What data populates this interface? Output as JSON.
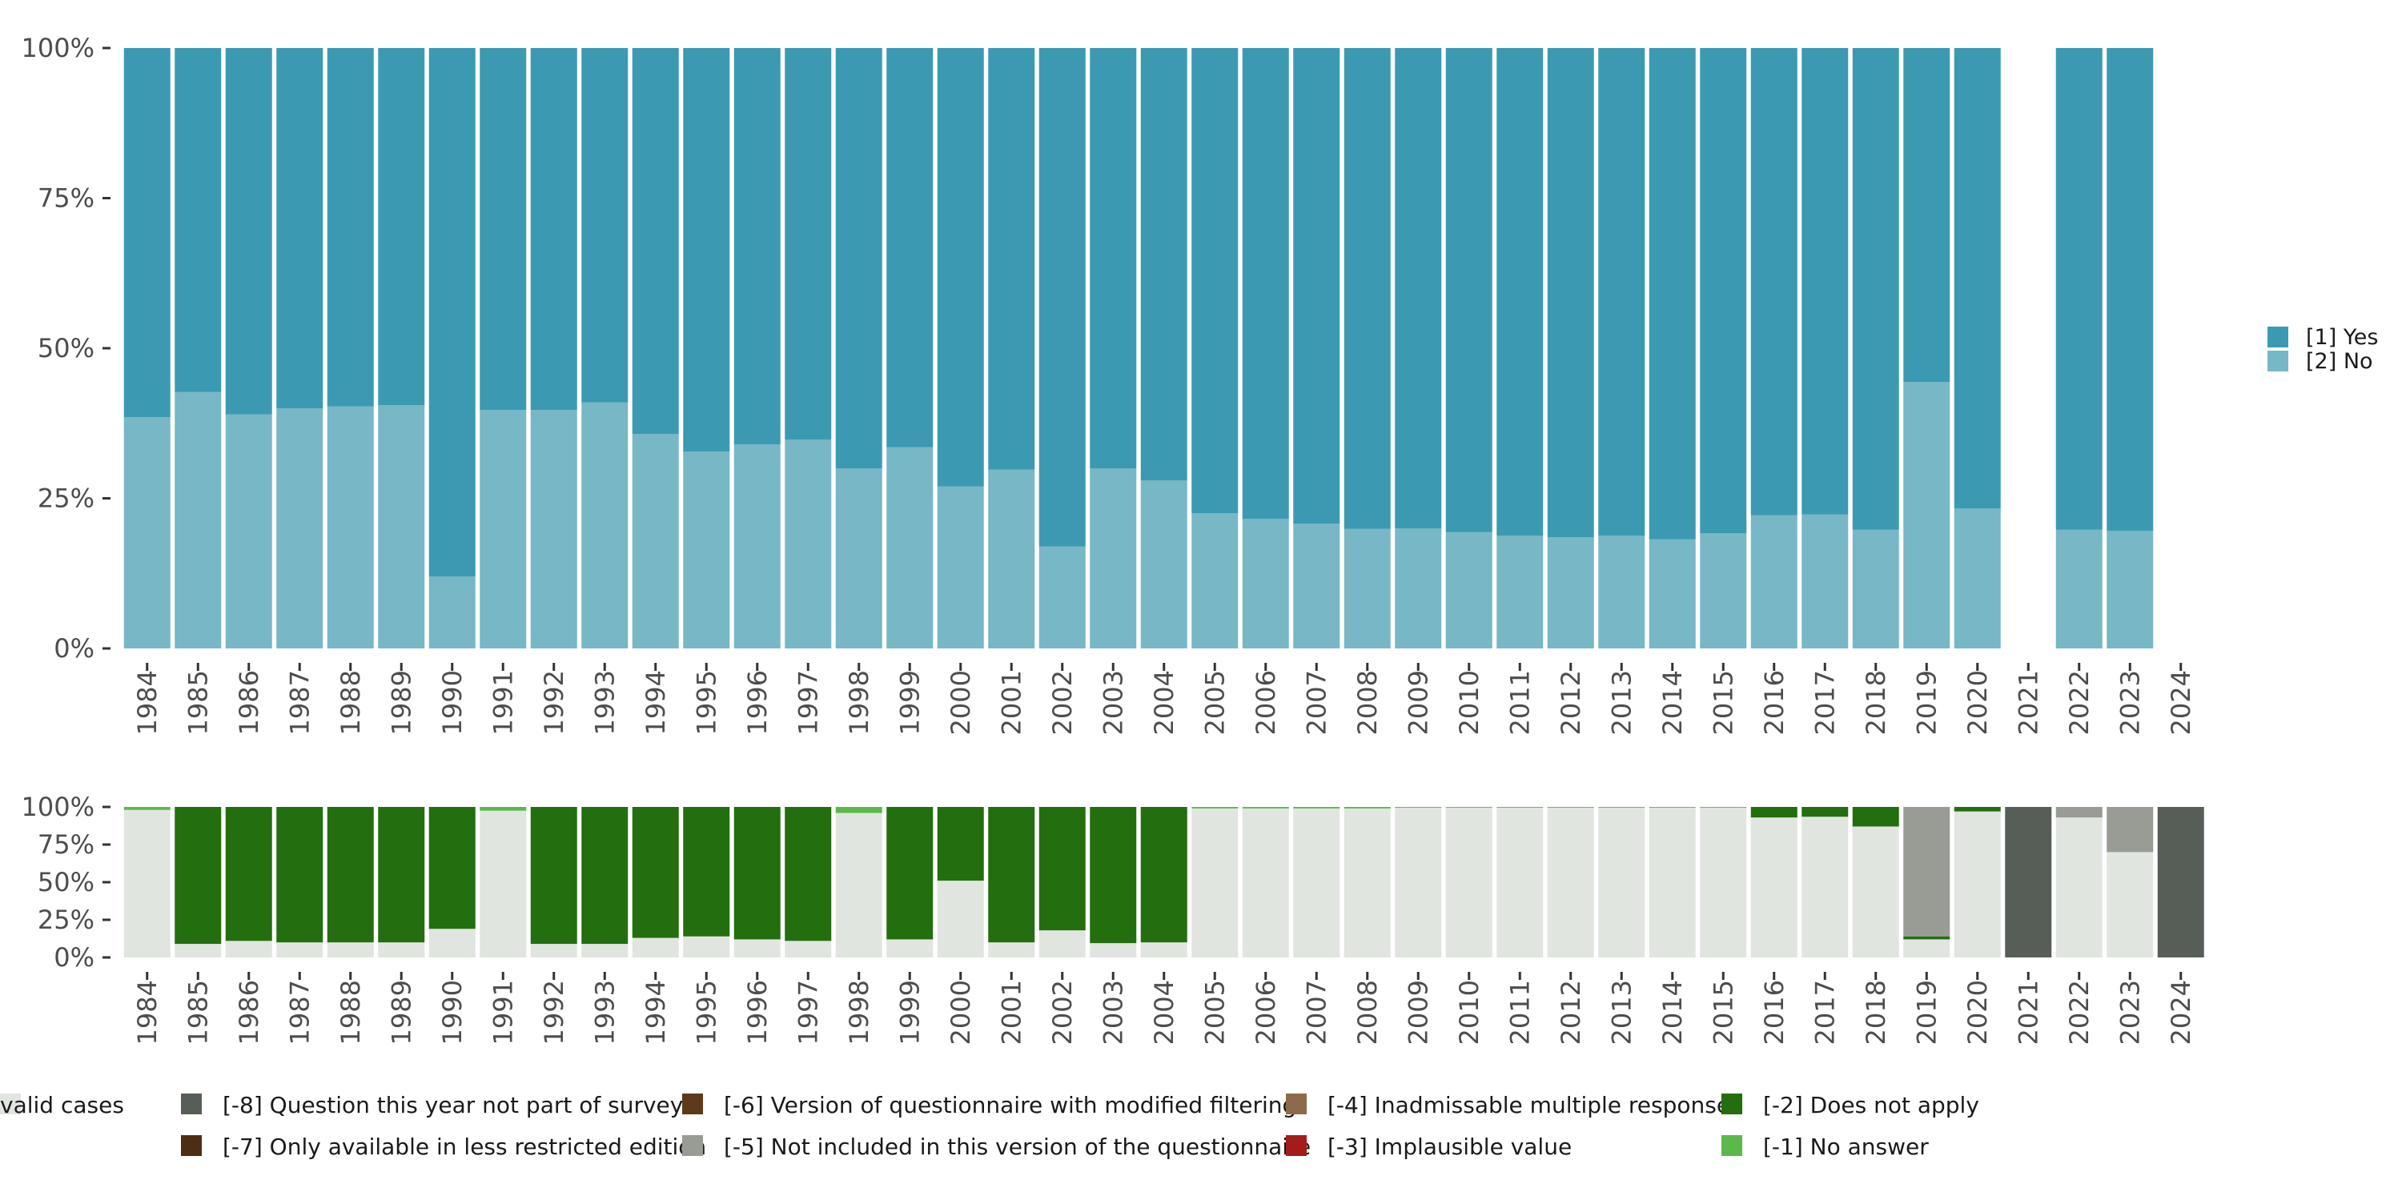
{
  "chart_data": [
    {
      "type": "bar",
      "stacked": true,
      "orientation": "vertical",
      "title": "",
      "xlabel": "",
      "ylabel": "",
      "ylim": [
        0,
        100
      ],
      "y_ticks": [
        "0%",
        "25%",
        "50%",
        "75%",
        "100%"
      ],
      "categories": [
        "1984",
        "1985",
        "1986",
        "1987",
        "1988",
        "1989",
        "1990",
        "1991",
        "1992",
        "1993",
        "1994",
        "1995",
        "1996",
        "1997",
        "1998",
        "1999",
        "2000",
        "2001",
        "2002",
        "2003",
        "2004",
        "2005",
        "2006",
        "2007",
        "2008",
        "2009",
        "2010",
        "2011",
        "2012",
        "2013",
        "2014",
        "2015",
        "2016",
        "2017",
        "2018",
        "2019",
        "2020",
        "2021",
        "2022",
        "2023",
        "2024"
      ],
      "series": [
        {
          "name": "[2] No",
          "color": "#78b7c5",
          "values": [
            38.5,
            42.7,
            39,
            40,
            40.3,
            40.5,
            12,
            39.7,
            39.7,
            41,
            35.7,
            32.8,
            34,
            34.8,
            30,
            33.5,
            27,
            29.8,
            17,
            30,
            28,
            22.5,
            21.6,
            20.8,
            19.9,
            20,
            19.4,
            18.8,
            18.5,
            18.8,
            18.2,
            19.2,
            22.2,
            22.3,
            19.8,
            44.4,
            23.3,
            null,
            19.8,
            19.6,
            null
          ]
        },
        {
          "name": "[1] Yes",
          "color": "#3b9ab2",
          "values": [
            61.5,
            57.3,
            61,
            60,
            59.7,
            59.5,
            88,
            60.3,
            60.3,
            59,
            64.3,
            67.2,
            66,
            65.2,
            70,
            66.5,
            73,
            70.2,
            83,
            70,
            72,
            77.5,
            78.4,
            79.2,
            80.1,
            80,
            80.6,
            81.2,
            81.5,
            81.2,
            81.8,
            80.8,
            77.8,
            77.7,
            80.2,
            55.6,
            76.7,
            null,
            80.2,
            80.4,
            null
          ]
        }
      ],
      "legend": {
        "position": "right",
        "entries": [
          "[1] Yes",
          "[2] No"
        ]
      }
    },
    {
      "type": "bar",
      "stacked": true,
      "orientation": "vertical",
      "title": "",
      "xlabel": "",
      "ylabel": "",
      "ylim": [
        0,
        100
      ],
      "y_ticks": [
        "0%",
        "25%",
        "50%",
        "75%",
        "100%"
      ],
      "categories": [
        "1984",
        "1985",
        "1986",
        "1987",
        "1988",
        "1989",
        "1990",
        "1991",
        "1992",
        "1993",
        "1994",
        "1995",
        "1996",
        "1997",
        "1998",
        "1999",
        "2000",
        "2001",
        "2002",
        "2003",
        "2004",
        "2005",
        "2006",
        "2007",
        "2008",
        "2009",
        "2010",
        "2011",
        "2012",
        "2013",
        "2014",
        "2015",
        "2016",
        "2017",
        "2018",
        "2019",
        "2020",
        "2021",
        "2022",
        "2023",
        "2024"
      ],
      "series": [
        {
          "name": "valid cases",
          "color": "#e1e5e0",
          "values": [
            98,
            9,
            11,
            10,
            10,
            10,
            19,
            97.5,
            9,
            9,
            13,
            14,
            12,
            11,
            96,
            12,
            51,
            10,
            18,
            9.5,
            10,
            99,
            99,
            99,
            99,
            99.5,
            99.5,
            99.5,
            99.5,
            99.5,
            99.5,
            99.5,
            93,
            93.5,
            87,
            12,
            97,
            0,
            93,
            70,
            0
          ]
        },
        {
          "name": "[-1] No answer",
          "color": "#5ab94a",
          "values": [
            2,
            0,
            0,
            0,
            0,
            0,
            0,
            2.5,
            0,
            0,
            0,
            0,
            0,
            0,
            4,
            0,
            0,
            0,
            0,
            0,
            0,
            1,
            1,
            1,
            1,
            0.5,
            0.5,
            0.5,
            0.5,
            0.5,
            0.5,
            0.5,
            0,
            0,
            0,
            0,
            0,
            0,
            0,
            0,
            0
          ]
        },
        {
          "name": "[-2] Does not apply",
          "color": "#236e0e",
          "values": [
            0,
            91,
            89,
            90,
            90,
            90,
            81,
            0,
            91,
            91,
            87,
            86,
            88,
            89,
            0,
            88,
            49,
            90,
            82,
            90.5,
            90,
            0,
            0,
            0,
            0,
            0,
            0,
            0,
            0,
            0,
            0,
            0,
            7,
            6.5,
            13,
            2,
            3,
            0,
            0,
            0,
            0
          ]
        },
        {
          "name": "[-5] Not included in this version of the questionnaire",
          "color": "#999b95",
          "values": [
            0,
            0,
            0,
            0,
            0,
            0,
            0,
            0,
            0,
            0,
            0,
            0,
            0,
            0,
            0,
            0,
            0,
            0,
            0,
            0,
            0,
            0,
            0,
            0,
            0,
            0,
            0,
            0,
            0,
            0,
            0,
            0,
            0,
            0,
            0,
            86,
            0,
            0,
            7,
            30,
            0
          ]
        },
        {
          "name": "[-8] Question this year not part of survey",
          "color": "#575e58",
          "values": [
            0,
            0,
            0,
            0,
            0,
            0,
            0,
            0,
            0,
            0,
            0,
            0,
            0,
            0,
            0,
            0,
            0,
            0,
            0,
            0,
            0,
            0,
            0,
            0,
            0,
            0,
            0,
            0,
            0,
            0,
            0,
            0,
            0,
            0,
            0,
            0,
            0,
            100,
            0,
            0,
            100
          ]
        }
      ],
      "legend": {
        "position": "bottom",
        "entries": [
          {
            "label": "[-8] Question this year not part of survey",
            "color": "#575e58"
          },
          {
            "label": "[-7] Only available in less restricted edition",
            "color": "#4d2e14"
          },
          {
            "label": "[-6] Version of questionnaire with modified filtering",
            "color": "#5e3a1a"
          },
          {
            "label": "[-5] Not included in this version of the questionnaire",
            "color": "#999b95"
          },
          {
            "label": "[-4] Inadmissable multiple response",
            "color": "#8c6a4a"
          },
          {
            "label": "[-3] Implausible value",
            "color": "#a51b1b"
          },
          {
            "label": "[-2] Does not apply",
            "color": "#236e0e"
          },
          {
            "label": "[-1] No answer",
            "color": "#5ab94a"
          },
          {
            "label": "valid cases",
            "color": "#e1e5e0"
          }
        ]
      }
    }
  ]
}
